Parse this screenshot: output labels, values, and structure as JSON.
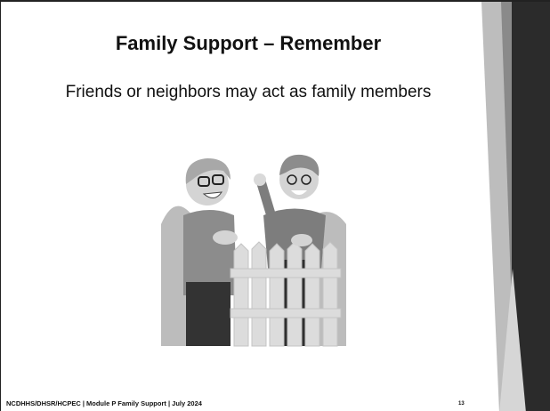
{
  "slide": {
    "title": "Family Support – Remember",
    "subtitle": "Friends or neighbors may act as family members",
    "footer": "NCDHHS/DHSR/HCPEC | Module P Family Support | July 2024",
    "page_number": 13
  }
}
